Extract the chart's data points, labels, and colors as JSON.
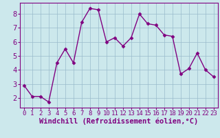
{
  "x": [
    0,
    1,
    2,
    3,
    4,
    5,
    6,
    7,
    8,
    9,
    10,
    11,
    12,
    13,
    14,
    15,
    16,
    17,
    18,
    19,
    20,
    21,
    22,
    23
  ],
  "y": [
    2.9,
    2.1,
    2.1,
    1.7,
    4.5,
    5.5,
    4.5,
    7.4,
    8.4,
    8.3,
    6.0,
    6.3,
    5.7,
    6.3,
    8.0,
    7.3,
    7.2,
    6.5,
    6.4,
    3.7,
    4.1,
    5.2,
    4.0,
    3.5
  ],
  "line_color": "#800080",
  "marker": "D",
  "marker_size": 2.5,
  "bg_color": "#cce8ec",
  "grid_color": "#99bbcc",
  "xlabel": "Windchill (Refroidissement éolien,°C)",
  "xlabel_color": "#800080",
  "tick_color": "#800080",
  "spine_color": "#800080",
  "ylim": [
    1.3,
    8.8
  ],
  "xlim": [
    -0.5,
    23.5
  ],
  "yticks": [
    2,
    3,
    4,
    5,
    6,
    7,
    8
  ],
  "xticks": [
    0,
    1,
    2,
    3,
    4,
    5,
    6,
    7,
    8,
    9,
    10,
    11,
    12,
    13,
    14,
    15,
    16,
    17,
    18,
    19,
    20,
    21,
    22,
    23
  ],
  "line_width": 1.0,
  "tick_font_size": 6.5,
  "xlabel_font_size": 7.5
}
